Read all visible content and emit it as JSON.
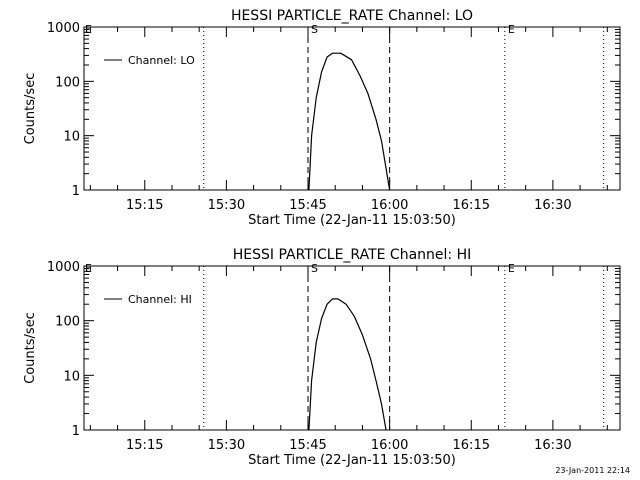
{
  "footer_timestamp": "23-Jan-2011 22:14",
  "chart_data": [
    {
      "type": "line",
      "title": "HESSI PARTICLE_RATE Channel: LO",
      "xlabel": "Start Time (22-Jan-11 15:03:50)",
      "ylabel": "Counts/sec",
      "y_scale": "log",
      "ylim": [
        1,
        1000
      ],
      "yticks": [
        1,
        10,
        100,
        1000
      ],
      "ytick_labels": [
        "1",
        "10",
        "100",
        "1000"
      ],
      "xlim": [
        "15:03:50",
        "16:42:20"
      ],
      "xticks": [
        "15:15",
        "15:30",
        "15:45",
        "16:00",
        "16:15",
        "16:30"
      ],
      "grid": false,
      "legend": "top-left",
      "series": [
        {
          "name": "Channel: LO",
          "x": [
            "15:45:10",
            "15:45:40",
            "15:46:30",
            "15:47:30",
            "15:48:30",
            "15:49:30",
            "15:51:00",
            "15:53:00",
            "15:54:30",
            "15:56:00",
            "15:57:30",
            "15:58:30",
            "15:59:30",
            "16:00:00"
          ],
          "y": [
            1,
            10,
            50,
            150,
            280,
            330,
            330,
            250,
            130,
            60,
            20,
            8,
            2,
            1
          ]
        }
      ],
      "vlines": [
        {
          "x": "15:25:50",
          "style": "dotted",
          "label": ""
        },
        {
          "x": "15:45:00",
          "style": "dashed",
          "label": "S"
        },
        {
          "x": "16:00:00",
          "style": "dashed",
          "label": ""
        },
        {
          "x": "16:21:10",
          "style": "dotted",
          "label": "E"
        },
        {
          "x": "16:39:20",
          "style": "dotted",
          "label": ""
        }
      ],
      "corner_marker": "E"
    },
    {
      "type": "line",
      "title": "HESSI PARTICLE_RATE Channel: HI",
      "xlabel": "Start Time (22-Jan-11 15:03:50)",
      "ylabel": "Counts/sec",
      "y_scale": "log",
      "ylim": [
        1,
        1000
      ],
      "yticks": [
        1,
        10,
        100,
        1000
      ],
      "ytick_labels": [
        "1",
        "10",
        "100",
        "1000"
      ],
      "xlim": [
        "15:03:50",
        "16:42:20"
      ],
      "xticks": [
        "15:15",
        "15:30",
        "15:45",
        "16:00",
        "16:15",
        "16:30"
      ],
      "grid": false,
      "legend": "top-left",
      "series": [
        {
          "name": "Channel: HI",
          "x": [
            "15:45:10",
            "15:45:40",
            "15:46:30",
            "15:47:30",
            "15:48:30",
            "15:49:30",
            "15:50:30",
            "15:52:00",
            "15:53:30",
            "15:55:00",
            "15:56:30",
            "15:57:30",
            "15:58:30",
            "15:59:20"
          ],
          "y": [
            1,
            8,
            40,
            110,
            200,
            250,
            250,
            200,
            120,
            55,
            20,
            8,
            3,
            1
          ]
        }
      ],
      "vlines": [
        {
          "x": "15:25:50",
          "style": "dotted",
          "label": ""
        },
        {
          "x": "15:45:00",
          "style": "dashed",
          "label": "S"
        },
        {
          "x": "16:00:00",
          "style": "dashed",
          "label": ""
        },
        {
          "x": "16:21:10",
          "style": "dotted",
          "label": "E"
        },
        {
          "x": "16:39:20",
          "style": "dotted",
          "label": ""
        }
      ],
      "corner_marker": "E"
    }
  ]
}
